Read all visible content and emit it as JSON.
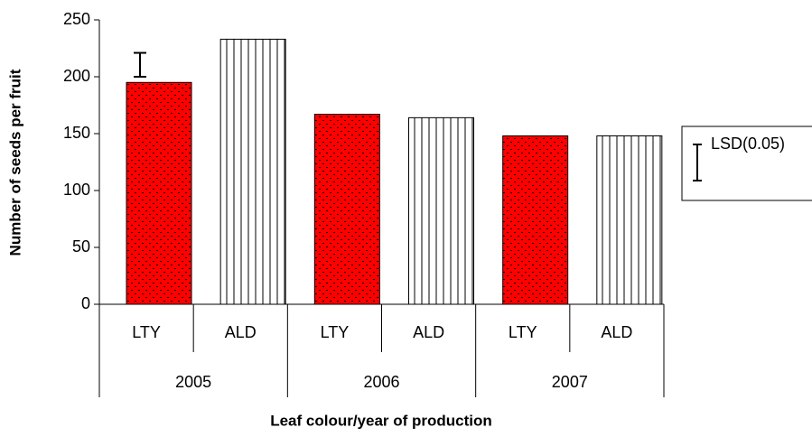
{
  "chart_data": {
    "type": "bar",
    "categories": [
      "LTY",
      "ALD",
      "LTY",
      "ALD",
      "LTY",
      "ALD"
    ],
    "groups": [
      "2005",
      "2006",
      "2007"
    ],
    "values": [
      195,
      233,
      167,
      164,
      148,
      148
    ],
    "colors": [
      "#ff0000",
      "#ffffff",
      "#ff0000",
      "#ffffff",
      "#ff0000",
      "#ffffff"
    ],
    "hatches": [
      "dots",
      "vertical",
      "dots",
      "vertical",
      "dots",
      "vertical"
    ],
    "ylim": [
      0,
      250
    ],
    "yticks": [
      0,
      50,
      100,
      150,
      200,
      250
    ],
    "ylabel": "Number of seeds per fruit",
    "xlabel": "Leaf colour/year of production",
    "error_bar": {
      "name": "LSD(0.05)",
      "values": [
        200,
        221
      ]
    },
    "legend": "right"
  }
}
